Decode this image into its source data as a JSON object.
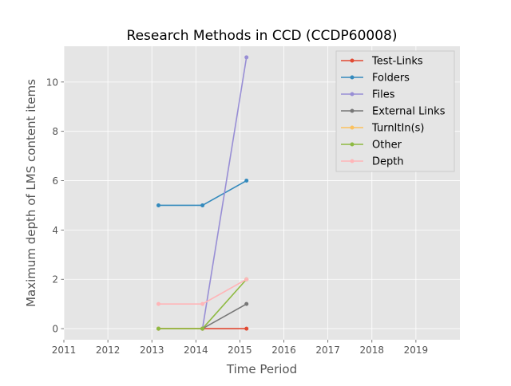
{
  "chart_data": {
    "type": "line",
    "title": "Research Methods in CCD (CCDP60008)",
    "xlabel": "Time Period",
    "ylabel": "Maximum depth of LMS content items",
    "xlim": [
      2011,
      2020
    ],
    "ylim": [
      -0.45,
      11.45
    ],
    "xticks": [
      2011,
      2012,
      2013,
      2014,
      2015,
      2016,
      2017,
      2018,
      2019
    ],
    "xtick_labels": [
      "2011",
      "2012",
      "2013",
      "2014",
      "2015",
      "2016",
      "2017",
      "2018",
      "2019"
    ],
    "yticks": [
      0,
      2,
      4,
      6,
      8,
      10
    ],
    "ytick_labels": [
      "0",
      "2",
      "4",
      "6",
      "8",
      "10"
    ],
    "grid": true,
    "legend_position": "top-right",
    "series": [
      {
        "name": "Test-Links",
        "color": "#E24A33",
        "x": [
          2013.15,
          2014.15,
          2015.15
        ],
        "values": [
          0,
          0,
          0
        ]
      },
      {
        "name": "Folders",
        "color": "#348ABD",
        "x": [
          2013.15,
          2014.15,
          2015.15
        ],
        "values": [
          5,
          5,
          6
        ]
      },
      {
        "name": "Files",
        "color": "#988ED5",
        "x": [
          2014.15,
          2015.15
        ],
        "values": [
          0,
          11
        ]
      },
      {
        "name": "External Links",
        "color": "#777777",
        "x": [
          2013.15,
          2014.15,
          2015.15
        ],
        "values": [
          0,
          0,
          1
        ]
      },
      {
        "name": "TurnItIn(s)",
        "color": "#FBC15E",
        "x": [
          2013.15,
          2014.15
        ],
        "values": [
          0,
          0
        ]
      },
      {
        "name": "Other",
        "color": "#8EBA42",
        "x": [
          2013.15,
          2014.15,
          2015.15
        ],
        "values": [
          0,
          0,
          2
        ]
      },
      {
        "name": "Depth",
        "color": "#FFB5B8",
        "x": [
          2013.15,
          2014.15,
          2015.15
        ],
        "values": [
          1,
          1,
          2
        ]
      }
    ]
  }
}
